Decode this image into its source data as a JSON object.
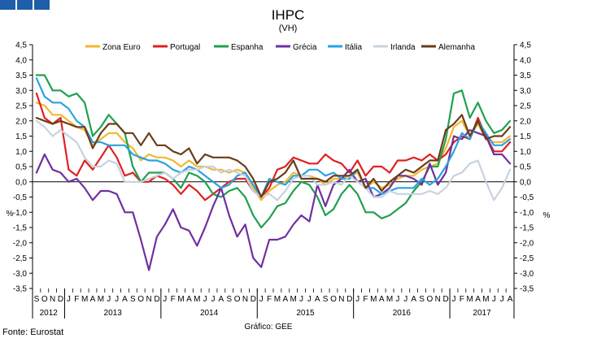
{
  "chart_data": {
    "type": "line",
    "title": "IHPC",
    "subtitle": "(VH)",
    "ylabel_left": "%",
    "ylabel_right": "%",
    "source": "Fonte: Eurostat",
    "credit": "Gráfico: GEE",
    "ylim": [
      -3.5,
      4.5
    ],
    "yticks": [
      "-3,5",
      "-3,0",
      "-2,5",
      "-2,0",
      "-1,5",
      "-1,0",
      "-0,5",
      "0,0",
      "0,5",
      "1,0",
      "1,5",
      "2,0",
      "2,5",
      "3,0",
      "3,5",
      "4,0",
      "4,5"
    ],
    "months": [
      "S",
      "O",
      "N",
      "D",
      "J",
      "F",
      "M",
      "A",
      "M",
      "J",
      "J",
      "A",
      "S",
      "O",
      "N",
      "D",
      "J",
      "F",
      "M",
      "A",
      "M",
      "J",
      "J",
      "A",
      "S",
      "O",
      "N",
      "D",
      "J",
      "F",
      "M",
      "A",
      "M",
      "J",
      "J",
      "A",
      "S",
      "O",
      "N",
      "D",
      "J",
      "F",
      "M",
      "A",
      "M",
      "J",
      "J",
      "A",
      "S",
      "O",
      "N",
      "D",
      "J",
      "F",
      "M",
      "A",
      "M",
      "J",
      "J",
      "A"
    ],
    "years": [
      {
        "label": "2012",
        "start": 0,
        "count": 4
      },
      {
        "label": "2013",
        "start": 4,
        "count": 12
      },
      {
        "label": "2014",
        "start": 16,
        "count": 12
      },
      {
        "label": "2015",
        "start": 28,
        "count": 12
      },
      {
        "label": "2016",
        "start": 40,
        "count": 12
      },
      {
        "label": "2017",
        "start": 52,
        "count": 8
      }
    ],
    "grid": false,
    "legend_position": "top",
    "series": [
      {
        "name": "Zona Euro",
        "color": "#f2b731",
        "values": [
          2.6,
          2.5,
          2.2,
          2.2,
          2.0,
          1.8,
          1.7,
          1.2,
          1.4,
          1.6,
          1.6,
          1.3,
          1.1,
          0.7,
          0.9,
          0.8,
          0.8,
          0.7,
          0.5,
          0.7,
          0.5,
          0.5,
          0.4,
          0.4,
          0.3,
          0.4,
          0.3,
          -0.2,
          -0.6,
          -0.3,
          -0.1,
          0.0,
          0.3,
          0.2,
          0.2,
          0.1,
          -0.1,
          0.1,
          0.1,
          0.2,
          0.3,
          -0.2,
          0.0,
          -0.2,
          -0.1,
          0.1,
          0.2,
          0.2,
          0.4,
          0.5,
          0.6,
          1.1,
          1.8,
          2.0,
          1.5,
          1.9,
          1.4,
          1.3,
          1.3,
          1.5
        ]
      },
      {
        "name": "Portugal",
        "color": "#e02020",
        "values": [
          2.9,
          2.1,
          1.9,
          2.1,
          0.4,
          0.2,
          0.7,
          0.4,
          0.8,
          1.2,
          0.8,
          0.2,
          0.3,
          0.0,
          0.0,
          0.2,
          0.1,
          -0.1,
          -0.4,
          -0.1,
          -0.3,
          -0.6,
          -0.4,
          -0.2,
          0.0,
          0.1,
          0.1,
          -0.3,
          -0.5,
          -0.2,
          0.4,
          0.5,
          0.8,
          0.7,
          0.6,
          0.6,
          0.9,
          0.7,
          0.6,
          0.3,
          0.7,
          0.2,
          0.5,
          0.5,
          0.3,
          0.7,
          0.7,
          0.8,
          0.7,
          0.9,
          0.7,
          0.9,
          1.3,
          1.5,
          1.4,
          2.1,
          1.5,
          1.0,
          1.0,
          1.3
        ]
      },
      {
        "name": "Espanha",
        "color": "#20a050",
        "values": [
          3.5,
          3.5,
          3.0,
          3.0,
          2.8,
          2.9,
          2.6,
          1.5,
          1.8,
          2.2,
          1.9,
          1.6,
          0.5,
          0.0,
          0.3,
          0.3,
          0.3,
          0.1,
          -0.2,
          0.3,
          0.2,
          0.0,
          -0.4,
          -0.5,
          -0.3,
          -0.2,
          -0.5,
          -1.1,
          -1.5,
          -1.2,
          -0.8,
          -0.7,
          -0.3,
          0.0,
          -0.1,
          -0.5,
          -1.1,
          -0.9,
          -0.4,
          -0.1,
          -0.4,
          -1.0,
          -1.0,
          -1.2,
          -1.1,
          -0.9,
          -0.7,
          -0.3,
          0.0,
          0.5,
          0.5,
          1.4,
          2.9,
          3.0,
          2.1,
          2.6,
          2.0,
          1.6,
          1.7,
          2.0
        ]
      },
      {
        "name": "Grécia",
        "color": "#7030a0",
        "values": [
          0.3,
          0.9,
          0.4,
          0.3,
          0.0,
          0.1,
          -0.2,
          -0.6,
          -0.3,
          -0.3,
          -0.4,
          -1.0,
          -1.0,
          -1.9,
          -2.9,
          -1.8,
          -1.4,
          -0.9,
          -1.5,
          -1.6,
          -2.1,
          -1.5,
          -0.8,
          -0.2,
          -1.1,
          -1.8,
          -1.4,
          -2.5,
          -2.8,
          -1.9,
          -1.9,
          -1.8,
          -1.4,
          -1.1,
          -1.3,
          -0.1,
          -0.8,
          -0.1,
          0.1,
          0.4,
          0.0,
          0.1,
          -0.5,
          -0.4,
          -0.2,
          0.2,
          0.2,
          0.1,
          -0.1,
          0.6,
          -0.1,
          0.3,
          1.5,
          1.4,
          1.7,
          1.6,
          1.5,
          0.9,
          0.9,
          0.6
        ]
      },
      {
        "name": "Itália",
        "color": "#29a3e0",
        "values": [
          3.4,
          2.8,
          2.6,
          2.6,
          2.4,
          2.0,
          1.8,
          1.3,
          1.3,
          1.2,
          1.2,
          1.2,
          0.9,
          0.8,
          0.7,
          0.7,
          0.6,
          0.4,
          0.3,
          0.5,
          0.4,
          0.2,
          0.0,
          -0.2,
          -0.1,
          0.2,
          0.3,
          -0.1,
          -0.5,
          0.1,
          0.0,
          -0.1,
          0.2,
          0.2,
          0.4,
          0.4,
          0.2,
          0.3,
          0.1,
          0.1,
          0.4,
          -0.2,
          -0.2,
          -0.4,
          -0.3,
          -0.2,
          -0.2,
          -0.2,
          0.1,
          -0.1,
          0.1,
          0.5,
          1.0,
          1.6,
          1.4,
          2.0,
          1.6,
          1.2,
          1.2,
          1.4
        ]
      },
      {
        "name": "Irlanda",
        "color": "#c8d2e0",
        "values": [
          2.0,
          1.8,
          1.5,
          1.7,
          1.5,
          1.3,
          0.8,
          0.5,
          0.5,
          0.7,
          0.6,
          0.0,
          0.0,
          0.0,
          0.1,
          0.2,
          0.3,
          0.1,
          0.3,
          0.4,
          0.4,
          0.5,
          0.5,
          0.3,
          0.4,
          0.3,
          0.2,
          -0.3,
          -0.5,
          -0.4,
          -0.6,
          -0.3,
          0.1,
          0.2,
          0.2,
          -0.1,
          -0.1,
          0.0,
          -0.1,
          0.2,
          0.0,
          -0.2,
          -0.5,
          -0.5,
          -0.3,
          -0.4,
          -0.4,
          -0.4,
          -0.4,
          -0.3,
          -0.4,
          -0.2,
          0.2,
          0.3,
          0.6,
          0.7,
          0.0,
          -0.6,
          -0.2,
          0.4
        ]
      },
      {
        "name": "Alemanha",
        "color": "#6b3d17",
        "values": [
          2.1,
          2.0,
          1.9,
          2.0,
          1.9,
          1.8,
          1.8,
          1.1,
          1.6,
          1.9,
          1.9,
          1.6,
          1.6,
          1.2,
          1.6,
          1.2,
          1.2,
          1.0,
          0.9,
          1.1,
          0.6,
          0.9,
          0.8,
          0.8,
          0.8,
          0.7,
          0.5,
          0.1,
          -0.5,
          0.0,
          0.1,
          0.3,
          0.7,
          0.1,
          0.1,
          0.1,
          0.0,
          0.2,
          0.2,
          0.2,
          0.4,
          -0.2,
          0.1,
          -0.3,
          0.0,
          0.2,
          0.4,
          0.3,
          0.5,
          0.7,
          0.7,
          1.7,
          1.9,
          2.2,
          1.5,
          2.0,
          1.4,
          1.5,
          1.5,
          1.8
        ]
      }
    ]
  }
}
